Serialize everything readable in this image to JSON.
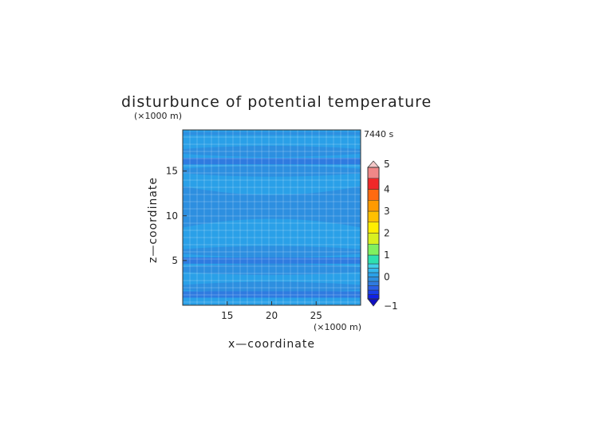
{
  "chart_data": {
    "type": "heatmap",
    "title": "disturbunce of potential temperature",
    "xlabel": "x—coordinate",
    "ylabel": "z—coordinate",
    "x_unit": "(×1000 m)",
    "y_unit": "(×1000 m)",
    "time_label": "7440 s",
    "xlim": [
      10,
      30
    ],
    "ylim": [
      0,
      19.6
    ],
    "x_ticks": [
      "15",
      "20",
      "25"
    ],
    "y_ticks": [
      "5",
      "10",
      "15"
    ],
    "x_tick_values": [
      15,
      20,
      25
    ],
    "y_tick_values": [
      5,
      10,
      15
    ],
    "colorbar": {
      "min": -1,
      "max": 5,
      "tick_labels": [
        "5",
        "4",
        "3",
        "2",
        "1",
        "0",
        "−1"
      ],
      "tick_values": [
        5,
        4,
        3,
        2,
        1,
        0,
        -1
      ],
      "levels": [
        {
          "from": -1.0,
          "to": -0.8,
          "color": "#1020e8"
        },
        {
          "from": -0.8,
          "to": -0.6,
          "color": "#1a3fe8"
        },
        {
          "from": -0.6,
          "to": -0.4,
          "color": "#2a5fe6"
        },
        {
          "from": -0.4,
          "to": -0.2,
          "color": "#2f7be0"
        },
        {
          "from": -0.2,
          "to": 0.0,
          "color": "#2d8fe0"
        },
        {
          "from": 0.0,
          "to": 0.2,
          "color": "#2aa0e8"
        },
        {
          "from": 0.2,
          "to": 0.4,
          "color": "#35b8ee"
        },
        {
          "from": 0.4,
          "to": 0.6,
          "color": "#40d0e8"
        },
        {
          "from": 0.6,
          "to": 1.0,
          "color": "#2ee0b0"
        },
        {
          "from": 1.0,
          "to": 1.5,
          "color": "#80f060"
        },
        {
          "from": 1.5,
          "to": 2.0,
          "color": "#d8f020"
        },
        {
          "from": 2.0,
          "to": 2.5,
          "color": "#ffee00"
        },
        {
          "from": 2.5,
          "to": 3.0,
          "color": "#ffc000"
        },
        {
          "from": 3.0,
          "to": 3.5,
          "color": "#ff9a00"
        },
        {
          "from": 3.5,
          "to": 4.0,
          "color": "#ff6a10"
        },
        {
          "from": 4.0,
          "to": 4.5,
          "color": "#f02828"
        },
        {
          "from": 4.5,
          "to": 5.0,
          "color": "#f08888"
        }
      ],
      "over_color": "#f4c8c8",
      "under_color": "#1010c0"
    },
    "field": {
      "background_value": 0.1,
      "background_color": "#2aa0e8",
      "bands": [
        {
          "z": 19.2,
          "value": -0.1,
          "shape": "edge-thin",
          "color": "#2d8fe0"
        },
        {
          "z": 18.3,
          "value": 0.1,
          "shape": "edge-lobes",
          "color": "#2aa0e8"
        },
        {
          "z": 17.2,
          "value": -0.1,
          "shape": "lens",
          "color": "#2d8fe0"
        },
        {
          "z": 16.1,
          "value": -0.2,
          "shape": "full",
          "color": "#2f7be0"
        },
        {
          "z": 15.0,
          "value": -0.1,
          "shape": "lens",
          "color": "#2d8fe0"
        },
        {
          "z": 11.0,
          "value": -0.1,
          "shape": "bowtie",
          "color": "#2d8fe0"
        },
        {
          "z": 7.0,
          "value": 0.1,
          "shape": "edge-lobes",
          "color": "#2aa0e8"
        },
        {
          "z": 6.0,
          "value": -0.1,
          "shape": "lens",
          "color": "#2d8fe0"
        },
        {
          "z": 5.0,
          "value": -0.2,
          "shape": "full",
          "color": "#2f7be0"
        },
        {
          "z": 4.0,
          "value": -0.1,
          "shape": "lens",
          "color": "#2d8fe0"
        },
        {
          "z": 2.0,
          "value": -0.1,
          "shape": "lens",
          "color": "#2d8fe0"
        },
        {
          "z": 1.2,
          "value": -0.2,
          "shape": "full",
          "color": "#2f7be0"
        }
      ]
    },
    "grid": true,
    "legend": "right"
  }
}
